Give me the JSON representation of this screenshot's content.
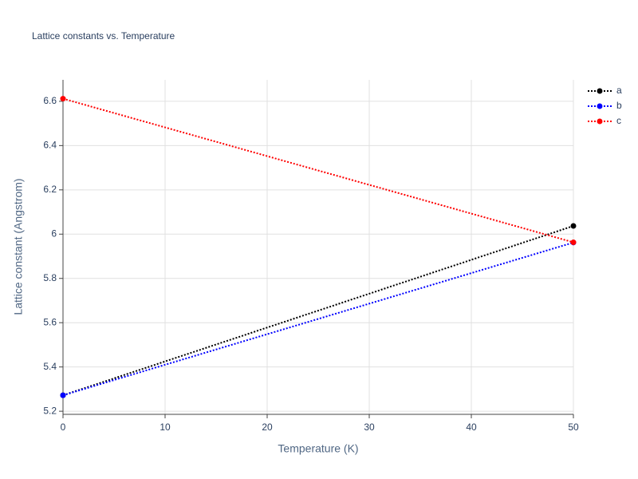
{
  "chart_data": {
    "type": "line",
    "title": "Lattice constants vs. Temperature",
    "xlabel": "Temperature (K)",
    "ylabel": "Lattice constant (Angstrom)",
    "x": [
      0,
      50
    ],
    "series": [
      {
        "name": "a",
        "color": "#000000",
        "values": [
          5.272,
          6.037
        ]
      },
      {
        "name": "b",
        "color": "#0000ff",
        "values": [
          5.272,
          5.962
        ]
      },
      {
        "name": "c",
        "color": "#ff0000",
        "values": [
          6.612,
          5.963
        ]
      }
    ],
    "xlim": [
      0,
      50
    ],
    "xticks": [
      0,
      10,
      20,
      30,
      40,
      50
    ],
    "ylim": [
      5.186,
      6.697
    ],
    "yticks": [
      5.2,
      5.4,
      5.6,
      5.8,
      6,
      6.2,
      6.4,
      6.6
    ],
    "grid": true,
    "legend": "top-right"
  }
}
